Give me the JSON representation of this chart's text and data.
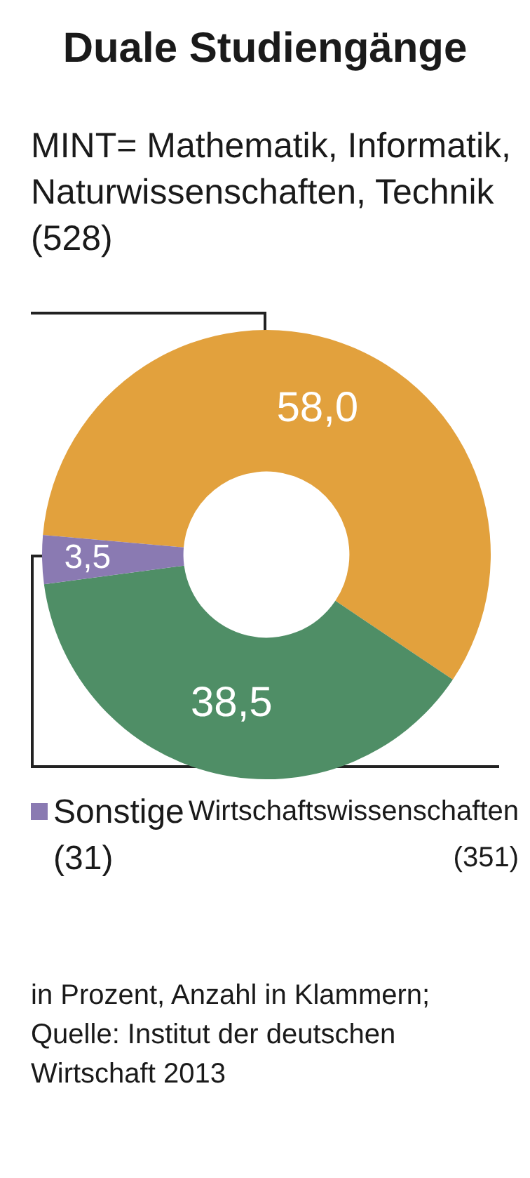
{
  "chart_data": {
    "type": "donut",
    "title": "Duale Studiengänge",
    "categories": [
      "MINT= Mathematik, Informatik, Naturwissenschaften, Technik (528)",
      "Wirtschaftswissenschaften (351)",
      "Sonstige (31)"
    ],
    "values": [
      58.0,
      38.5,
      3.5
    ],
    "value_labels": [
      "58,0",
      "38,5",
      "3,5"
    ],
    "colors": [
      "#e2a13d",
      "#4f8e66",
      "#8a7ab2"
    ],
    "legend": "bottom",
    "annotations": [
      "in Prozent, Anzahl in Klammern; Quelle: Institut der deutschen Wirtschaft 2013"
    ]
  }
}
